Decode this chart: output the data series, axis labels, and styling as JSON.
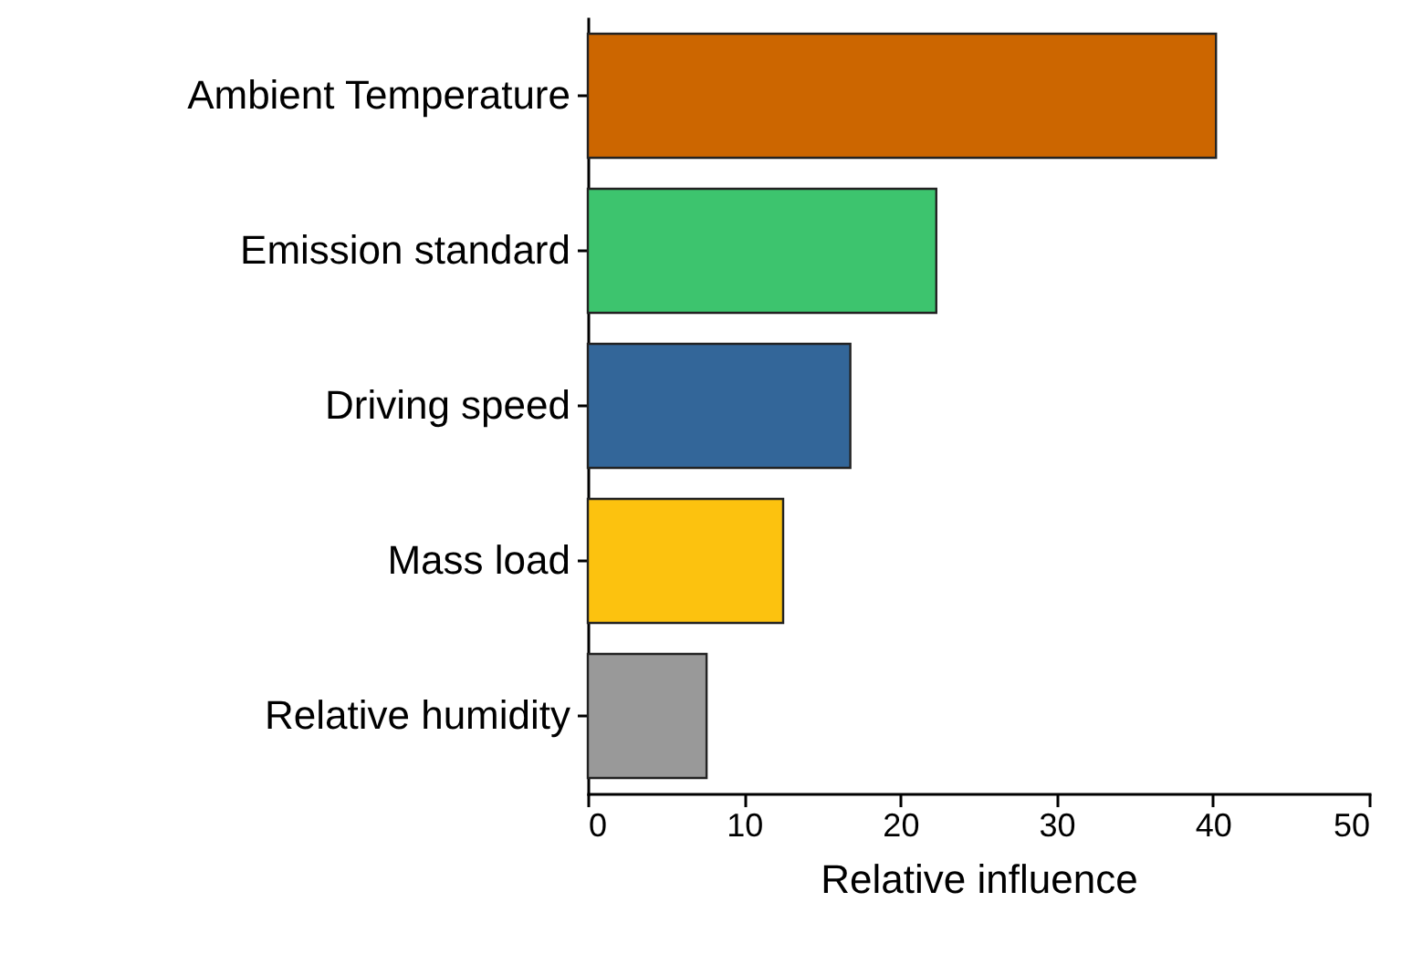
{
  "chart_data": {
    "type": "bar",
    "orientation": "horizontal",
    "xlabel": "Relative influence",
    "categories": [
      "Ambient Temperature",
      "Emission standard",
      "Driving speed",
      "Mass load",
      "Relative humidity"
    ],
    "values": [
      40.2,
      22.3,
      16.8,
      12.5,
      7.6
    ],
    "colors": [
      "#cc6600",
      "#3dc46e",
      "#336699",
      "#fcc20f",
      "#999999"
    ],
    "xlim": [
      0,
      50
    ],
    "xticks": [
      0,
      10,
      20,
      30,
      40,
      50
    ],
    "grid": false
  }
}
